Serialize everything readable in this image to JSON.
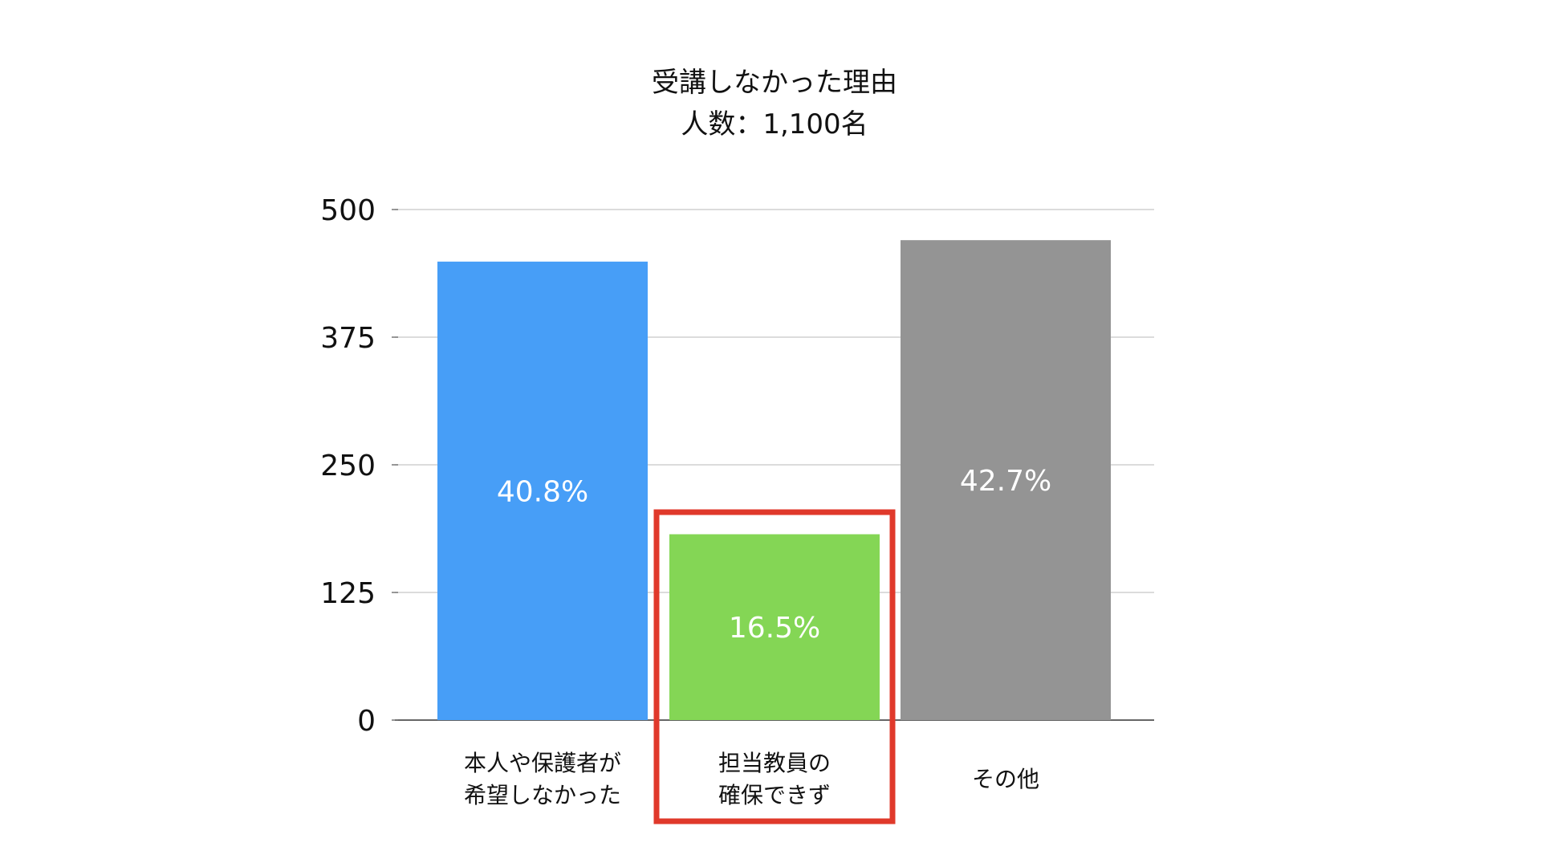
{
  "chart_data": {
    "type": "bar",
    "title_lines": [
      "受講しなかった理由",
      "人数：1,100名"
    ],
    "categories": [
      [
        "本人や保護者が",
        "希望しなかった"
      ],
      [
        "担当教員の",
        "確保できず"
      ],
      [
        "その他"
      ]
    ],
    "values": [
      449,
      182,
      470
    ],
    "data_labels": [
      "40.8%",
      "16.5%",
      "42.7%"
    ],
    "bar_colors": [
      "#479EF7",
      "#84D655",
      "#949494"
    ],
    "ylim": [
      0,
      500
    ],
    "yticks": [
      0,
      125,
      250,
      375,
      500
    ],
    "grid": true,
    "legend": "none",
    "highlight": {
      "category_index": 1,
      "color": "#E0392B"
    }
  }
}
